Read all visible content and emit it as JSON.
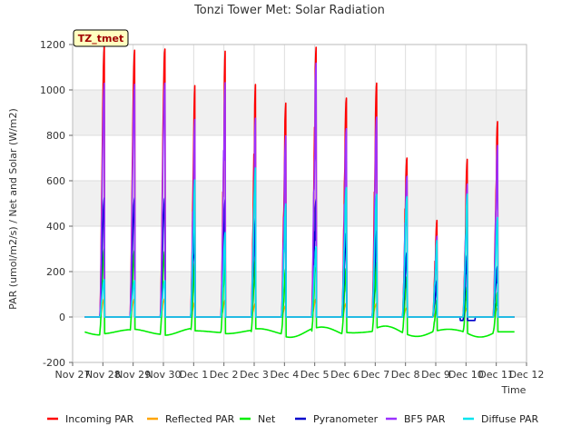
{
  "chart_data": {
    "type": "line",
    "title": "Tonzi Tower Met: Solar Radiation",
    "xlabel": "Time",
    "ylabel": "PAR (umol/m2/s) / Net and Solar (W/m2)",
    "badge": "TZ_tmet",
    "ylim": [
      -200,
      1200
    ],
    "yticks": [
      -200,
      0,
      200,
      400,
      600,
      800,
      1000,
      1200
    ],
    "xlim": [
      0,
      15
    ],
    "xticks": [
      {
        "pos": 0,
        "label": "Nov 27"
      },
      {
        "pos": 1,
        "label": "Nov 28"
      },
      {
        "pos": 2,
        "label": "Nov 29"
      },
      {
        "pos": 3,
        "label": "Nov 30"
      },
      {
        "pos": 4,
        "label": "Dec 1"
      },
      {
        "pos": 5,
        "label": "Dec 2"
      },
      {
        "pos": 6,
        "label": "Dec 3"
      },
      {
        "pos": 7,
        "label": "Dec 4"
      },
      {
        "pos": 8,
        "label": "Dec 5"
      },
      {
        "pos": 9,
        "label": "Dec 6"
      },
      {
        "pos": 10,
        "label": "Dec 7"
      },
      {
        "pos": 11,
        "label": "Dec 8"
      },
      {
        "pos": 12,
        "label": "Dec 9"
      },
      {
        "pos": 13,
        "label": "Dec 10"
      },
      {
        "pos": 14,
        "label": "Dec 11"
      },
      {
        "pos": 15,
        "label": "Dec 12"
      }
    ],
    "grid": true,
    "legend_position": "bottom",
    "series": [
      {
        "name": "Incoming PAR",
        "color": "#ff0000",
        "night": 0,
        "peaks": [
          1190,
          1175,
          1180,
          1030,
          1180,
          1030,
          945,
          1190,
          965,
          1030,
          700,
          430,
          700,
          865
        ]
      },
      {
        "name": "Reflected PAR",
        "color": "#ffa500",
        "night": 0,
        "peaks": [
          80,
          80,
          80,
          65,
          75,
          60,
          50,
          80,
          60,
          60,
          40,
          20,
          40,
          40
        ]
      },
      {
        "name": "Net",
        "color": "#00ee00",
        "night": -65,
        "peaks": [
          300,
          295,
          290,
          240,
          280,
          260,
          215,
          285,
          215,
          240,
          180,
          80,
          135,
          110
        ]
      },
      {
        "name": "Pyranometer",
        "color": "#0000cc",
        "night": 0,
        "peaks": [
          525,
          525,
          525,
          420,
          520,
          435,
          500,
          520,
          370,
          380,
          285,
          165,
          290,
          225
        ]
      },
      {
        "name": "BF5 PAR",
        "color": "#9b30ff",
        "night": 0,
        "peaks": [
          1030,
          1025,
          1030,
          880,
          1040,
          880,
          800,
          1120,
          830,
          880,
          620,
          360,
          590,
          760
        ]
      },
      {
        "name": "Diffuse PAR",
        "color": "#00e5ee",
        "night": 0,
        "peaks": [
          165,
          160,
          160,
          610,
          375,
          660,
          500,
          310,
          570,
          540,
          530,
          340,
          545,
          440
        ]
      }
    ]
  }
}
